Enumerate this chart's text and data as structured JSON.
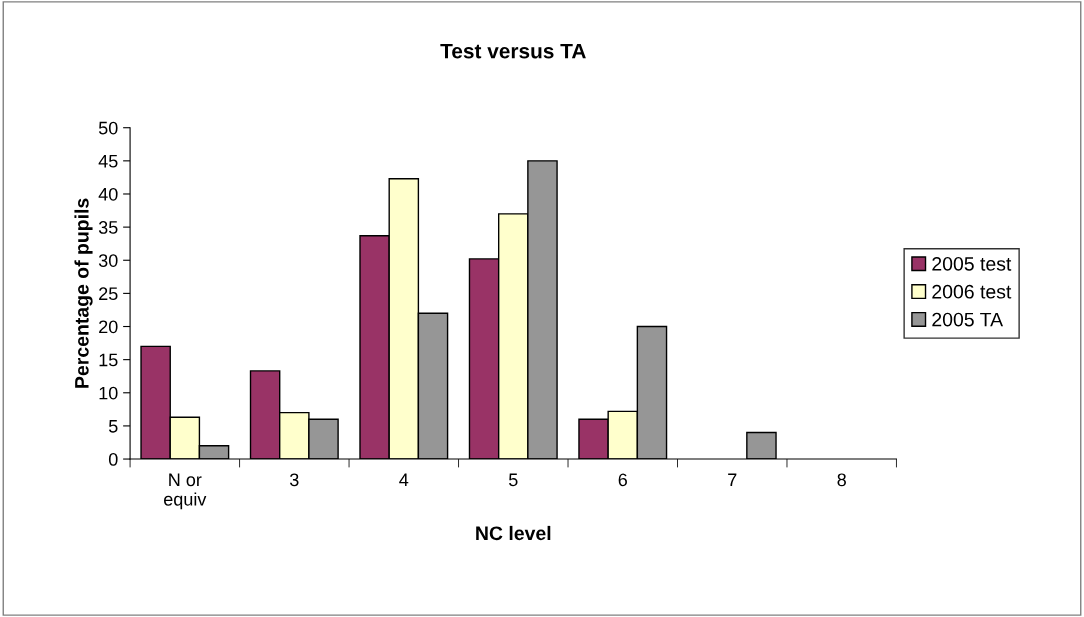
{
  "chart_data": {
    "type": "bar",
    "title": "Test versus TA",
    "xlabel": "NC level",
    "ylabel": "Percentage of pupils",
    "categories": [
      "N or\nequiv",
      "3",
      "4",
      "5",
      "6",
      "7",
      "8"
    ],
    "series": [
      {
        "name": "2005 test",
        "color": "#993366",
        "values": [
          17,
          13.3,
          33.7,
          30.2,
          6,
          0,
          0
        ]
      },
      {
        "name": "2006 test",
        "color": "#ffffcc",
        "values": [
          6.3,
          7,
          42.3,
          37,
          7.2,
          0,
          0
        ]
      },
      {
        "name": "2005 TA",
        "color": "#969696",
        "values": [
          2,
          6,
          22,
          45,
          20,
          4,
          0
        ]
      }
    ],
    "ylim": [
      0,
      50
    ],
    "yticks": [
      0,
      5,
      10,
      15,
      20,
      25,
      30,
      35,
      40,
      45,
      50
    ],
    "grid": false,
    "legend": "right"
  }
}
